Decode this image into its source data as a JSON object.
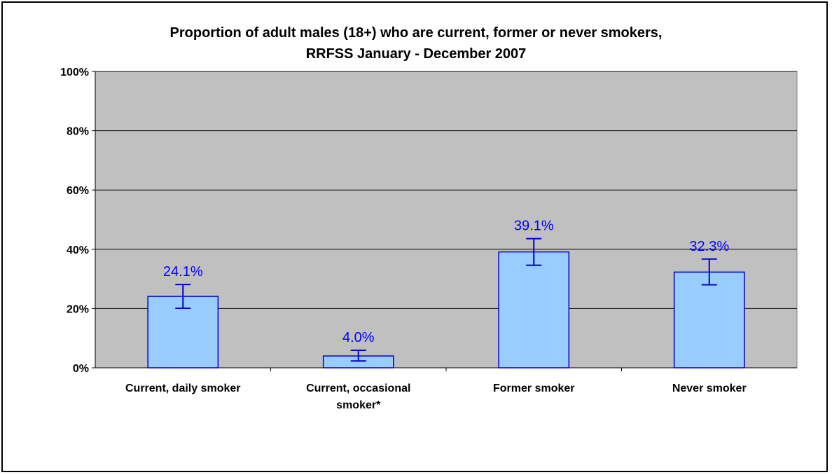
{
  "colors": {
    "plot_background": "#c0c0c0",
    "bar_fill": "#99ccff",
    "bar_stroke": "#0000cc",
    "error_bar": "#0000cc",
    "data_label": "#0000ff",
    "gridline": "#000000"
  },
  "chart_data": {
    "type": "bar",
    "title_lines": [
      "Proportion of adult males (18+) who are current, former or never smokers,",
      "RRFSS January - December 2007"
    ],
    "categories": [
      [
        "Current, daily smoker"
      ],
      [
        "Current, occasional",
        "smoker*"
      ],
      [
        "Former smoker"
      ],
      [
        "Never smoker"
      ]
    ],
    "values": [
      24.1,
      4.0,
      39.1,
      32.3
    ],
    "value_labels": [
      "24.1%",
      "4.0%",
      "39.1%",
      "32.3%"
    ],
    "error_low": [
      20.1,
      2.3,
      34.6,
      28.0
    ],
    "error_high": [
      28.1,
      5.9,
      43.6,
      36.7
    ],
    "ylim": [
      0,
      100
    ],
    "yticks": [
      0,
      20,
      40,
      60,
      80,
      100
    ],
    "ytick_labels": [
      "0%",
      "20%",
      "40%",
      "60%",
      "80%",
      "100%"
    ],
    "grid": true,
    "legend": "none"
  }
}
